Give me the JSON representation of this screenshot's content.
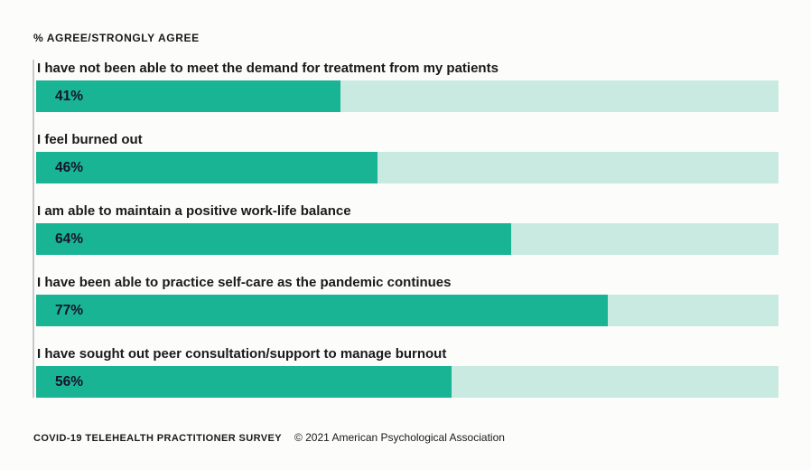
{
  "header": {
    "title": "% AGREE/STRONGLY AGREE"
  },
  "chart_data": {
    "type": "bar",
    "orientation": "horizontal",
    "title": "% AGREE/STRONGLY AGREE",
    "categories": [
      "I have not been able to meet the demand for treatment from my patients",
      "I feel burned out",
      "I am able to maintain a positive work-life balance",
      "I have been able to practice self-care as the pandemic continues",
      "I have sought out peer consultation/support to manage burnout"
    ],
    "values": [
      41,
      46,
      64,
      77,
      56
    ],
    "value_labels": [
      "41%",
      "46%",
      "64%",
      "77%",
      "56%"
    ],
    "xlim": [
      0,
      100
    ],
    "grid": false,
    "legend": false,
    "colors": {
      "fill": "#19b494",
      "track": "#c9eae1",
      "axis_line": "#c9c9c9",
      "text": "#1a1a1a"
    }
  },
  "footer": {
    "source": "COVID-19 TELEHEALTH PRACTITIONER SURVEY",
    "copyright": "© 2021 American Psychological Association"
  }
}
